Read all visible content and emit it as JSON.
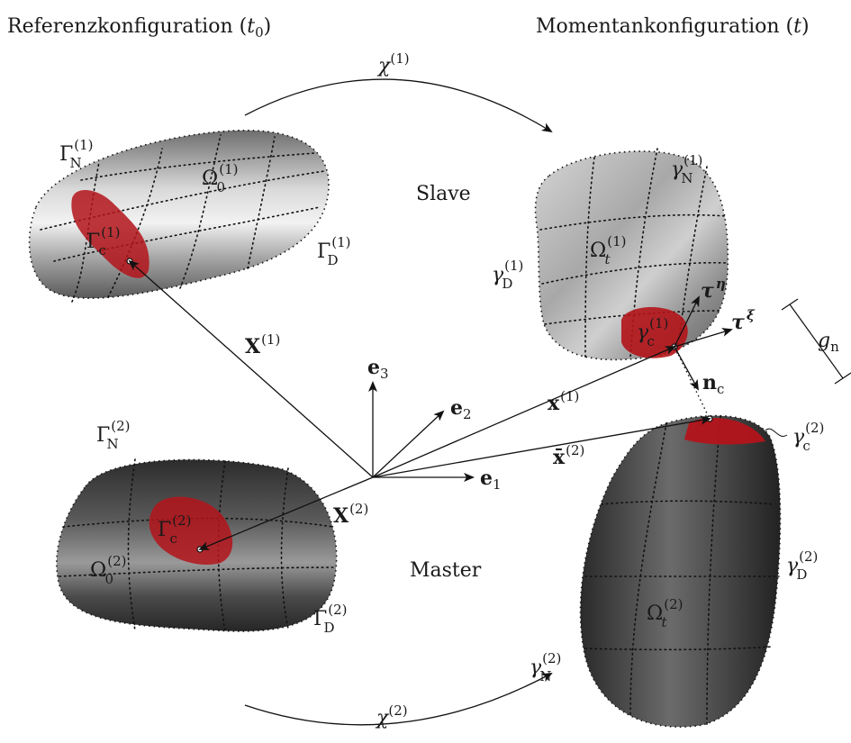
{
  "headers": {
    "reference": {
      "text": "Referenzkonfiguration ",
      "arg": "t",
      "arg_sub": "0"
    },
    "current": {
      "text": "Momentankonfiguration ",
      "arg": "t"
    }
  },
  "words": {
    "slave": "Slave",
    "master": "Master"
  },
  "maps": {
    "chi1": {
      "base": "χ",
      "sup": "(1)"
    },
    "chi2": {
      "base": "χ",
      "sup": "(2)"
    }
  },
  "reference_body_1": {
    "gamma_N": {
      "base": "Γ",
      "sub": "N",
      "sup": "(1)"
    },
    "omega": {
      "base": "Ω",
      "sub": "0",
      "sup": "(1)"
    },
    "gamma_c": {
      "base": "Γ",
      "sub": "c",
      "sup": "(1)"
    },
    "gamma_D": {
      "base": "Γ",
      "sub": "D",
      "sup": "(1)"
    },
    "position": {
      "base": "X",
      "sup": "(1)"
    }
  },
  "reference_body_2": {
    "gamma_N": {
      "base": "Γ",
      "sub": "N",
      "sup": "(2)"
    },
    "omega": {
      "base": "Ω",
      "sub": "0",
      "sup": "(2)"
    },
    "gamma_c": {
      "base": "Γ",
      "sub": "c",
      "sup": "(2)"
    },
    "gamma_D": {
      "base": "Γ",
      "sub": "D",
      "sup": "(2)"
    },
    "position": {
      "base": "X",
      "sup": "(2)"
    }
  },
  "current_body_1": {
    "gamma_N": {
      "base": "γ",
      "sub": "N",
      "sup": "(1)"
    },
    "omega": {
      "base": "Ω",
      "sub": "t",
      "sup": "(1)"
    },
    "gamma_c": {
      "base": "γ",
      "sub": "c",
      "sup": "(1)"
    },
    "gamma_D": {
      "base": "γ",
      "sub": "D",
      "sup": "(1)"
    },
    "position": {
      "base": "x",
      "sup": "(1)"
    },
    "tau_eta": {
      "base": "τ",
      "sup": "η"
    },
    "tau_xi": {
      "base": "τ",
      "sup": "ξ"
    }
  },
  "current_body_2": {
    "gamma_N": {
      "base": "γ",
      "sub": "N",
      "sup": "(2)"
    },
    "omega": {
      "base": "Ω",
      "sub": "t",
      "sup": "(2)"
    },
    "gamma_c": {
      "base": "γ",
      "sub": "c",
      "sup": "(2)"
    },
    "gamma_D": {
      "base": "γ",
      "sub": "D",
      "sup": "(2)"
    },
    "position": {
      "base": "x̄",
      "sup": "(2)"
    }
  },
  "contact": {
    "normal": {
      "base": "n",
      "sub": "c"
    },
    "gap": {
      "base": "g",
      "sub": "n"
    }
  },
  "basis": {
    "e1": {
      "base": "e",
      "sub": "1"
    },
    "e2": {
      "base": "e",
      "sub": "2"
    },
    "e3": {
      "base": "e",
      "sub": "3"
    }
  },
  "colors": {
    "contact_patch": "#b3141a",
    "slave_body": "#b8b8b8",
    "master_body": "#3d3d3d",
    "ink": "#111111"
  }
}
